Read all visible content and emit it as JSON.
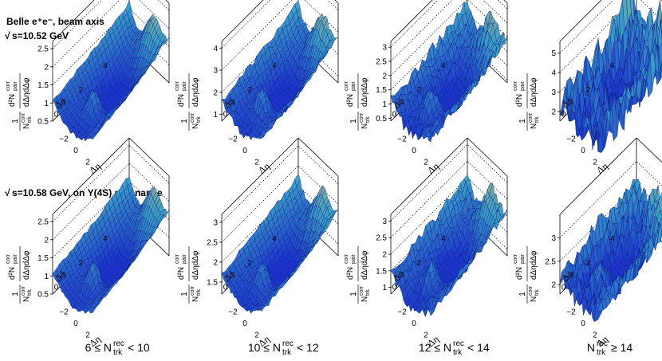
{
  "header": {
    "line1": "Belle e⁺e⁻, beam axis",
    "line2": "s=10.52 GeV",
    "line3": "s=10.58 GeV, on Υ(4S) resonance",
    "sqrt_glyph": "√"
  },
  "ylabel": {
    "pre": "1",
    "den": "N",
    "den_sup": "corr",
    "den_sub": "trk",
    "num": "d²N",
    "num_sup": "corr",
    "num_sub": "pair",
    "num_den": "dΔηdΔφ"
  },
  "axis_labels": {
    "phi": "Δϕ",
    "eta": "Δη"
  },
  "bins": [
    "6 ≤ Nᵣₑᶜ < 10",
    "10 ≤ N < 12",
    "12 ≤ N < 14",
    "N ≥ 14"
  ],
  "bin_parts": [
    {
      "pre": "6 ≤ N",
      "sup": "rec",
      "sub": "trk",
      "post": " < 10"
    },
    {
      "pre": "10 ≤ N",
      "sup": "rec",
      "sub": "trk",
      "post": " < 12"
    },
    {
      "pre": "12 ≤ N",
      "sup": "rec",
      "sub": "trk",
      "post": " < 14"
    },
    {
      "pre": "N",
      "sup": "rec",
      "sub": "trk",
      "post": " ≥ 14"
    }
  ],
  "colors": {
    "surface_low": "#1a2fcf",
    "surface_mid": "#3aa0c8",
    "surface_high": "#e8c060",
    "grid": "#000000"
  },
  "chart_data": [
    {
      "type": "surface",
      "row": "s=10.52 GeV",
      "bin": 0,
      "zticks": [
        "0.5",
        "1",
        "1.5",
        "2",
        "2.5"
      ],
      "zlim": [
        0.5,
        2.7
      ],
      "phi_ticks": [
        "0",
        "2",
        "4"
      ],
      "eta_ticks": [
        "−2",
        "0",
        "2"
      ],
      "noise": 0.05
    },
    {
      "type": "surface",
      "row": "s=10.52 GeV",
      "bin": 1,
      "zticks": [
        "1",
        "2",
        "3",
        "4"
      ],
      "zlim": [
        0.7,
        4.3
      ],
      "phi_ticks": [
        "0",
        "2",
        "4"
      ],
      "eta_ticks": [
        "−2",
        "0",
        "2"
      ],
      "noise": 0.08
    },
    {
      "type": "surface",
      "row": "s=10.52 GeV",
      "bin": 2,
      "zticks": [
        "0.5",
        "1",
        "1.5",
        "2",
        "2.5",
        "3"
      ],
      "zlim": [
        0.4,
        3.2
      ],
      "phi_ticks": [
        "0",
        "2",
        "4"
      ],
      "eta_ticks": [
        "−2",
        "0",
        "2"
      ],
      "noise": 0.15
    },
    {
      "type": "surface",
      "row": "s=10.52 GeV",
      "bin": 3,
      "zticks": [
        "2",
        "3",
        "4",
        "5"
      ],
      "zlim": [
        1.5,
        5.6
      ],
      "phi_ticks": [
        "0",
        "2",
        "4"
      ],
      "eta_ticks": [
        "−2",
        "0",
        "2"
      ],
      "noise": 0.55
    },
    {
      "type": "surface",
      "row": "s=10.58 GeV",
      "bin": 0,
      "zticks": [
        "0.5",
        "1",
        "1.5",
        "2",
        "2.5"
      ],
      "zlim": [
        0.5,
        2.7
      ],
      "phi_ticks": [
        "0",
        "2",
        "4"
      ],
      "eta_ticks": [
        "−2",
        "0",
        "2"
      ],
      "noise": 0.04
    },
    {
      "type": "surface",
      "row": "s=10.58 GeV",
      "bin": 1,
      "zticks": [
        "1.5",
        "2",
        "2.5",
        "3"
      ],
      "zlim": [
        1.2,
        3.2
      ],
      "phi_ticks": [
        "0",
        "2",
        "4"
      ],
      "eta_ticks": [
        "−2",
        "0",
        "2"
      ],
      "noise": 0.06
    },
    {
      "type": "surface",
      "row": "s=10.58 GeV",
      "bin": 2,
      "zticks": [
        "1",
        "1.5",
        "2",
        "2.5",
        "3"
      ],
      "zlim": [
        0.8,
        3.2
      ],
      "phi_ticks": [
        "0",
        "2",
        "4"
      ],
      "eta_ticks": [
        "−2",
        "0",
        "2"
      ],
      "noise": 0.12
    },
    {
      "type": "surface",
      "row": "s=10.58 GeV",
      "bin": 3,
      "zticks": [
        "2",
        "2.5",
        "3"
      ],
      "zlim": [
        1.8,
        3.5
      ],
      "phi_ticks": [
        "0",
        "2",
        "4"
      ],
      "eta_ticks": [
        "−2",
        "0",
        "2"
      ],
      "noise": 0.3
    }
  ]
}
